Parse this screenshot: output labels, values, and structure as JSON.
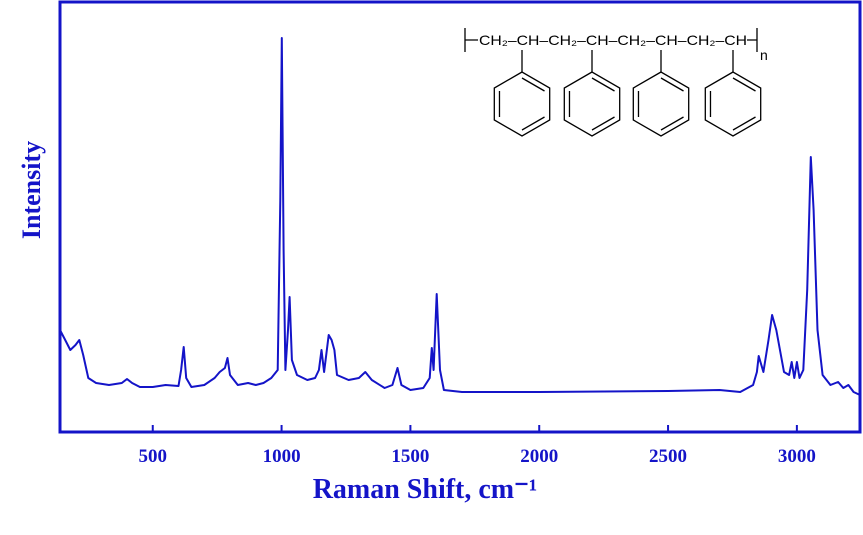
{
  "chart_data": {
    "type": "line",
    "xlabel": "Raman Shift, cm⁻¹",
    "ylabel": "Intensity",
    "color": "#1414c8",
    "xlim": [
      140,
      3245
    ],
    "ylim": [
      0,
      430
    ],
    "xticks": [
      500,
      1000,
      1500,
      2000,
      2500,
      3000
    ],
    "structure": {
      "chain": "CH₂–CH–CH₂–CH–CH₂–CH–CH₂–CH",
      "subscript": "n"
    },
    "x": [
      140,
      160,
      180,
      200,
      215,
      230,
      250,
      280,
      330,
      380,
      400,
      420,
      450,
      500,
      550,
      600,
      610,
      620,
      630,
      650,
      700,
      740,
      760,
      780,
      790,
      800,
      830,
      870,
      900,
      930,
      960,
      985,
      995,
      1001,
      1008,
      1015,
      1025,
      1031,
      1040,
      1060,
      1100,
      1130,
      1145,
      1155,
      1165,
      1183,
      1194,
      1205,
      1215,
      1260,
      1300,
      1325,
      1350,
      1400,
      1430,
      1450,
      1465,
      1500,
      1550,
      1575,
      1583,
      1590,
      1602,
      1615,
      1630,
      1700,
      2000,
      2500,
      2700,
      2780,
      2830,
      2845,
      2852,
      2870,
      2890,
      2904,
      2920,
      2950,
      2970,
      2980,
      2990,
      3000,
      3010,
      3025,
      3040,
      3054,
      3065,
      3080,
      3100,
      3130,
      3160,
      3180,
      3200,
      3220,
      3245
    ],
    "values": [
      102,
      92,
      82,
      87,
      92,
      77,
      54,
      49,
      47,
      49,
      53,
      49,
      45,
      45,
      47,
      46,
      62,
      85,
      54,
      45,
      47,
      54,
      60,
      64,
      74,
      57,
      47,
      49,
      47,
      49,
      54,
      62,
      232,
      394,
      182,
      62,
      102,
      135,
      72,
      57,
      52,
      54,
      62,
      82,
      60,
      97,
      92,
      82,
      57,
      52,
      54,
      60,
      52,
      44,
      47,
      64,
      47,
      42,
      44,
      54,
      84,
      62,
      138,
      62,
      42,
      40,
      40,
      41,
      42,
      40,
      47,
      60,
      76,
      60,
      92,
      117,
      102,
      60,
      57,
      70,
      54,
      70,
      54,
      62,
      142,
      275,
      222,
      102,
      57,
      47,
      50,
      44,
      47,
      40,
      37
    ]
  }
}
